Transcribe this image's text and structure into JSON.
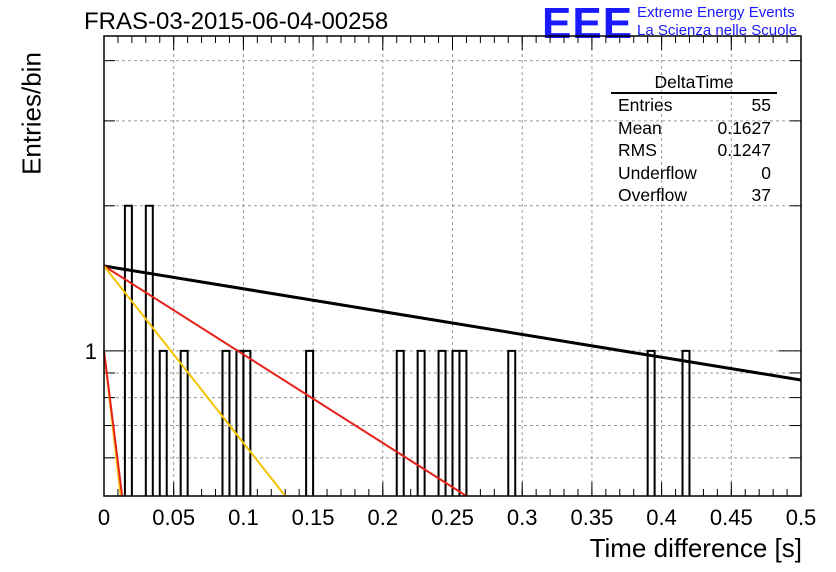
{
  "title": "FRAS-03-2015-06-04-00258",
  "logo": {
    "text": "EEE",
    "line1": "Extreme Energy Events",
    "line2": "La Scienza nelle Scuole"
  },
  "stats": {
    "name": "DeltaTime",
    "rows": [
      {
        "label": "Entries",
        "value": "55"
      },
      {
        "label": "Mean",
        "value": "0.1627"
      },
      {
        "label": "RMS",
        "value": "0.1247"
      },
      {
        "label": "Underflow",
        "value": "0"
      },
      {
        "label": "Overflow",
        "value": "37"
      }
    ]
  },
  "chart_data": {
    "type": "bar",
    "title": "FRAS-03-2015-06-04-00258",
    "xlabel": "Time difference [s]",
    "ylabel": "Entries/bin",
    "xlim": [
      0,
      0.5
    ],
    "ylim": [
      0.5,
      4.5
    ],
    "yscale": "log",
    "grid": true,
    "x_ticks": [
      "0",
      "0.05",
      "0.1",
      "0.15",
      "0.2",
      "0.25",
      "0.3",
      "0.35",
      "0.4",
      "0.45",
      "0.5"
    ],
    "y_ticks": [
      "1"
    ],
    "bin_width": 0.005,
    "bins": [
      {
        "x": 0.015,
        "count": 2
      },
      {
        "x": 0.03,
        "count": 2
      },
      {
        "x": 0.04,
        "count": 1
      },
      {
        "x": 0.055,
        "count": 1
      },
      {
        "x": 0.085,
        "count": 1
      },
      {
        "x": 0.095,
        "count": 1
      },
      {
        "x": 0.1,
        "count": 1
      },
      {
        "x": 0.145,
        "count": 1
      },
      {
        "x": 0.21,
        "count": 1
      },
      {
        "x": 0.225,
        "count": 1
      },
      {
        "x": 0.24,
        "count": 1
      },
      {
        "x": 0.25,
        "count": 1
      },
      {
        "x": 0.255,
        "count": 1
      },
      {
        "x": 0.29,
        "count": 1
      },
      {
        "x": 0.39,
        "count": 1
      },
      {
        "x": 0.415,
        "count": 1
      }
    ],
    "fit_lines": [
      {
        "color": "#000000",
        "points": [
          [
            0,
            1.5
          ],
          [
            0.5,
            0.87
          ]
        ]
      },
      {
        "color": "#e8201a",
        "points": [
          [
            0,
            1.5
          ],
          [
            0.26,
            0.5
          ]
        ]
      },
      {
        "color": "#f5c400",
        "points": [
          [
            0,
            1.5
          ],
          [
            0.13,
            0.5
          ]
        ]
      },
      {
        "color": "#f5c400",
        "points": [
          [
            0,
            1.0
          ],
          [
            0.012,
            0.5
          ]
        ]
      },
      {
        "color": "#e8201a",
        "points": [
          [
            0,
            1.0
          ],
          [
            0.013,
            0.5
          ]
        ]
      }
    ]
  }
}
